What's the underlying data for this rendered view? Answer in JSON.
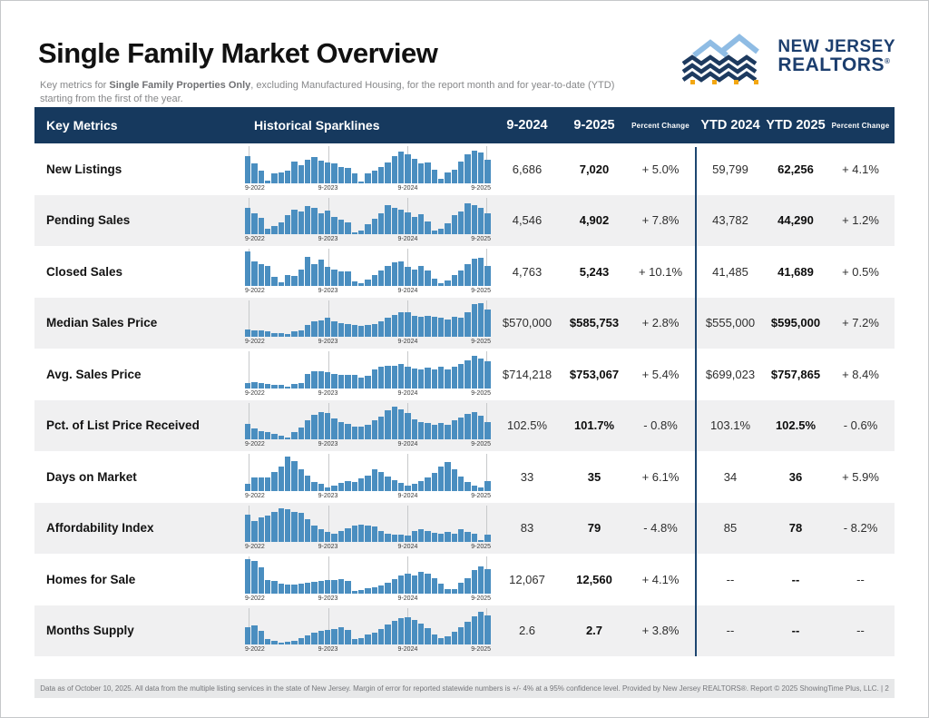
{
  "page": {
    "title": "Single Family Market Overview",
    "subtitle_prefix": "Key metrics for ",
    "subtitle_bold": "Single Family Properties Only",
    "subtitle_suffix": ", excluding Manufactured Housing, for the report month and for year-to-date (YTD) starting from the first of the year.",
    "footer": "Data as of October 10, 2025. All data from the multiple listing services in the state of New Jersey. Margin of error for reported statewide numbers is +/- 4% at a 95% confidence level. Provided by New Jersey REALTORS®. Report © 2025 ShowingTime Plus, LLC. | 2",
    "logo": {
      "line1": "NEW JERSEY",
      "line2": "REALTORS",
      "registered": "®"
    }
  },
  "colors": {
    "navy": "#16395e",
    "bar": "#4a8ec0",
    "alt": "#f0f0f1",
    "logo-navy": "#1c3e6e",
    "divider": "#1d4670",
    "orange": "#f3a712",
    "lblue": "#8fbce4"
  },
  "table": {
    "headers": {
      "key_metrics": "Key Metrics",
      "sparklines": "Historical Sparklines",
      "month_prior": "9-2024",
      "month_current": "9-2025",
      "pct_change": "Percent Change",
      "ytd_prior": "YTD 2024",
      "ytd_current": "YTD 2025",
      "pct_change2": "Percent Change"
    },
    "spark_labels": [
      "9-2022",
      "9-2023",
      "9-2024",
      "9-2025"
    ],
    "rows": [
      {
        "label": "New Listings",
        "m_prior": "6,686",
        "m_cur": "7,020",
        "m_chg": "+ 5.0%",
        "y_prior": "59,799",
        "y_cur": "62,256",
        "y_chg": "+ 4.1%",
        "spark": [
          78,
          58,
          35,
          7,
          28,
          32,
          35,
          62,
          52,
          68,
          75,
          65,
          60,
          58,
          47,
          45,
          28,
          5,
          27,
          37,
          47,
          60,
          78,
          93,
          83,
          72,
          58,
          60,
          40,
          13,
          30,
          40,
          62,
          85,
          95,
          90,
          68
        ]
      },
      {
        "label": "Pending Sales",
        "m_prior": "4,546",
        "m_cur": "4,902",
        "m_chg": "+ 7.8%",
        "y_prior": "43,782",
        "y_cur": "44,290",
        "y_chg": "+ 1.2%",
        "spark": [
          78,
          62,
          48,
          15,
          25,
          35,
          55,
          72,
          68,
          82,
          78,
          62,
          70,
          52,
          42,
          35,
          6,
          12,
          30,
          45,
          62,
          85,
          78,
          72,
          65,
          52,
          58,
          38,
          10,
          15,
          32,
          55,
          68,
          90,
          85,
          78,
          62
        ]
      },
      {
        "label": "Closed Sales",
        "m_prior": "4,763",
        "m_cur": "5,243",
        "m_chg": "+ 10.1%",
        "y_prior": "41,485",
        "y_cur": "41,689",
        "y_chg": "+ 0.5%",
        "spark": [
          100,
          72,
          62,
          58,
          25,
          10,
          32,
          28,
          48,
          85,
          62,
          75,
          55,
          48,
          42,
          42,
          12,
          8,
          18,
          30,
          45,
          58,
          68,
          72,
          55,
          48,
          58,
          45,
          20,
          8,
          15,
          30,
          45,
          62,
          78,
          82,
          58
        ]
      },
      {
        "label": "Median Sales Price",
        "m_prior": "$570,000",
        "m_cur": "$585,753",
        "m_chg": "+ 2.8%",
        "y_prior": "$555,000",
        "y_cur": "$595,000",
        "y_chg": "+ 7.2%",
        "spark": [
          22,
          20,
          20,
          15,
          12,
          12,
          8,
          15,
          18,
          35,
          45,
          48,
          55,
          45,
          40,
          38,
          35,
          32,
          35,
          38,
          45,
          55,
          65,
          72,
          72,
          62,
          58,
          62,
          58,
          55,
          52,
          60,
          55,
          72,
          95,
          100,
          80
        ]
      },
      {
        "label": "Avg. Sales Price",
        "m_prior": "$714,218",
        "m_cur": "$753,067",
        "m_chg": "+ 5.4%",
        "y_prior": "$699,023",
        "y_cur": "$757,865",
        "y_chg": "+ 8.4%",
        "spark": [
          15,
          18,
          15,
          12,
          10,
          10,
          5,
          12,
          15,
          42,
          50,
          50,
          48,
          42,
          40,
          38,
          38,
          30,
          35,
          55,
          62,
          65,
          65,
          70,
          62,
          58,
          55,
          60,
          55,
          62,
          55,
          62,
          70,
          82,
          95,
          88,
          80
        ]
      },
      {
        "label": "Pct. of List Price Received",
        "m_prior": "102.5%",
        "m_cur": "101.7%",
        "m_chg": "- 0.8%",
        "y_prior": "103.1%",
        "y_cur": "102.5%",
        "y_chg": "- 0.6%",
        "spark": [
          45,
          32,
          25,
          22,
          15,
          10,
          5,
          22,
          35,
          55,
          72,
          80,
          78,
          62,
          52,
          45,
          38,
          38,
          42,
          55,
          68,
          85,
          95,
          88,
          78,
          58,
          52,
          48,
          42,
          48,
          42,
          55,
          65,
          75,
          80,
          70,
          52
        ]
      },
      {
        "label": "Days on Market",
        "m_prior": "33",
        "m_cur": "35",
        "m_chg": "+ 6.1%",
        "y_prior": "34",
        "y_cur": "36",
        "y_chg": "+ 5.9%",
        "spark": [
          20,
          38,
          40,
          38,
          55,
          72,
          100,
          88,
          62,
          45,
          25,
          20,
          10,
          15,
          22,
          28,
          25,
          35,
          45,
          62,
          55,
          42,
          30,
          22,
          15,
          20,
          28,
          38,
          52,
          72,
          85,
          62,
          42,
          25,
          15,
          10,
          28
        ]
      },
      {
        "label": "Affordability Index",
        "m_prior": "83",
        "m_cur": "79",
        "m_chg": "- 4.8%",
        "y_prior": "85",
        "y_cur": "78",
        "y_chg": "- 8.2%",
        "spark": [
          80,
          62,
          72,
          78,
          88,
          100,
          95,
          88,
          85,
          68,
          48,
          38,
          30,
          25,
          32,
          40,
          48,
          52,
          48,
          45,
          32,
          25,
          22,
          22,
          20,
          32,
          38,
          32,
          28,
          25,
          30,
          25,
          38,
          30,
          25,
          5,
          22
        ]
      },
      {
        "label": "Homes for Sale",
        "m_prior": "12,067",
        "m_cur": "12,560",
        "m_chg": "+ 4.1%",
        "y_prior": "--",
        "y_cur": "--",
        "y_chg": "--",
        "spark": [
          100,
          95,
          75,
          40,
          35,
          28,
          25,
          25,
          28,
          30,
          33,
          36,
          38,
          40,
          42,
          35,
          8,
          10,
          15,
          18,
          22,
          32,
          42,
          52,
          58,
          52,
          62,
          58,
          45,
          28,
          12,
          12,
          30,
          45,
          68,
          78,
          72
        ]
      },
      {
        "label": "Months Supply",
        "m_prior": "2.6",
        "m_cur": "2.7",
        "m_chg": "+ 3.8%",
        "y_prior": "--",
        "y_cur": "--",
        "y_chg": "--",
        "spark": [
          50,
          55,
          40,
          15,
          12,
          6,
          8,
          12,
          20,
          28,
          35,
          40,
          42,
          45,
          50,
          42,
          15,
          20,
          30,
          35,
          45,
          58,
          70,
          78,
          80,
          72,
          62,
          48,
          30,
          18,
          25,
          38,
          52,
          68,
          82,
          95,
          85
        ]
      }
    ]
  }
}
